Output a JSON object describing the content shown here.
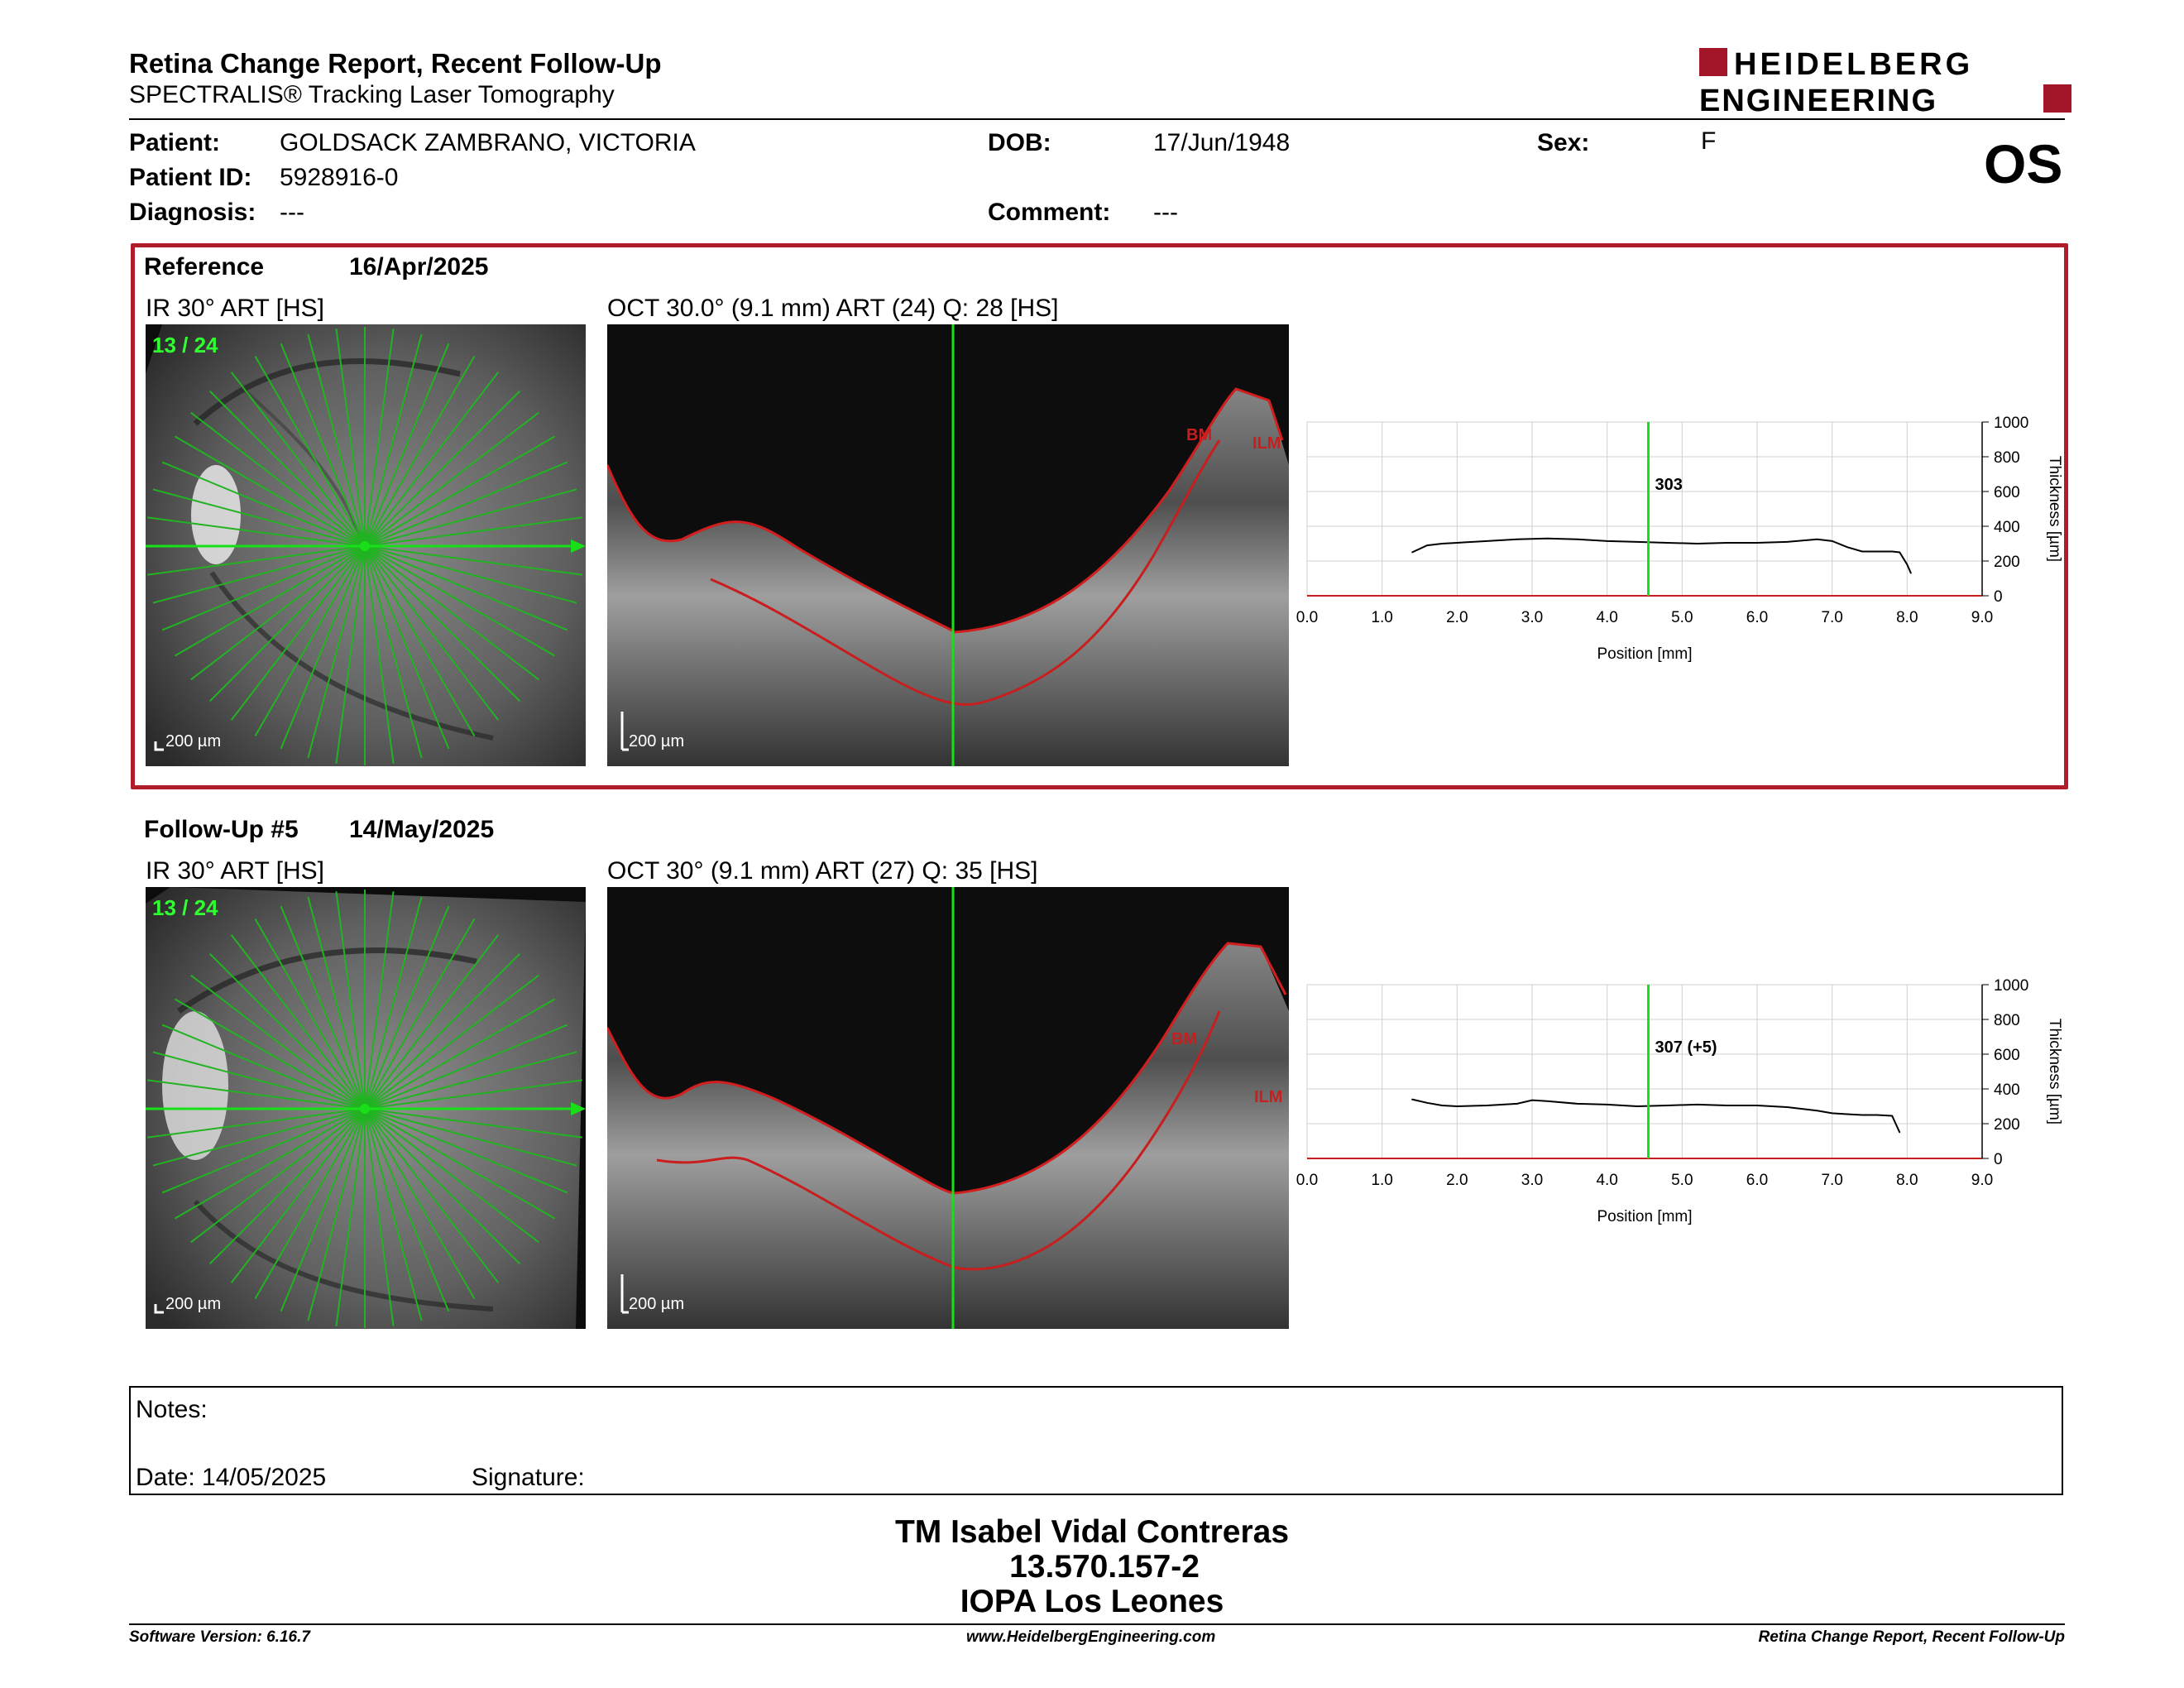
{
  "header": {
    "title": "Retina Change Report, Recent Follow-Up",
    "subtitle": "SPECTRALIS® Tracking Laser Tomography",
    "logo_line1": "HEIDELBERG",
    "logo_line2": "ENGINEERING",
    "eye": "OS"
  },
  "patient": {
    "patient_label": "Patient:",
    "patient_name": "GOLDSACK ZAMBRANO, VICTORIA",
    "id_label": "Patient ID:",
    "id_value": "5928916-0",
    "diagnosis_label": "Diagnosis:",
    "diagnosis_value": "---",
    "dob_label": "DOB:",
    "dob_value": "17/Jun/1948",
    "comment_label": "Comment:",
    "comment_value": "---",
    "sex_label": "Sex:",
    "sex_value": "F"
  },
  "reference": {
    "label": "Reference",
    "date": "16/Apr/2025",
    "ir_caption": "IR 30° ART [HS]",
    "oct_caption": "OCT 30.0° (9.1 mm) ART (24) Q: 28 [HS]",
    "scan_index": "13 / 24",
    "scale_ir": "200 µm",
    "scale_oct": "200 µm",
    "layer_bm": "BM",
    "layer_ilm": "ILM",
    "thickness_value": "303"
  },
  "followup": {
    "label": "Follow-Up #5",
    "date": "14/May/2025",
    "ir_caption": "IR 30° ART [HS]",
    "oct_caption": "OCT 30° (9.1 mm) ART (27) Q: 35 [HS]",
    "scan_index": "13 / 24",
    "scale_ir": "200 µm",
    "scale_oct": "200 µm",
    "layer_bm": "BM",
    "layer_ilm": "ILM",
    "thickness_value": "307 (+5)"
  },
  "chart_data": [
    {
      "type": "line",
      "title": "",
      "xlabel": "Position [mm]",
      "ylabel": "Thickness [µm]",
      "xlim": [
        0,
        9
      ],
      "ylim": [
        0,
        1000
      ],
      "x_ticks": [
        "0.0",
        "1.0",
        "2.0",
        "3.0",
        "4.0",
        "5.0",
        "6.0",
        "7.0",
        "8.0",
        "9.0"
      ],
      "y_ticks": [
        "0",
        "200",
        "400",
        "600",
        "800",
        "1000"
      ],
      "cursor_x": 4.55,
      "cursor_label": "303",
      "series": [
        {
          "x": [
            1.4,
            1.6,
            1.8,
            2.0,
            2.4,
            2.8,
            3.2,
            3.6,
            4.0,
            4.4,
            4.8,
            5.2,
            5.6,
            6.0,
            6.4,
            6.8,
            7.0,
            7.2,
            7.4,
            7.6,
            7.8,
            7.9,
            8.0,
            8.05
          ],
          "values": [
            250,
            290,
            300,
            305,
            315,
            325,
            330,
            325,
            315,
            310,
            305,
            300,
            305,
            305,
            310,
            325,
            315,
            280,
            255,
            255,
            255,
            250,
            180,
            130
          ]
        }
      ]
    },
    {
      "type": "line",
      "title": "",
      "xlabel": "Position [mm]",
      "ylabel": "Thickness [µm]",
      "xlim": [
        0,
        9
      ],
      "ylim": [
        0,
        1000
      ],
      "x_ticks": [
        "0.0",
        "1.0",
        "2.0",
        "3.0",
        "4.0",
        "5.0",
        "6.0",
        "7.0",
        "8.0",
        "9.0"
      ],
      "y_ticks": [
        "0",
        "200",
        "400",
        "600",
        "800",
        "1000"
      ],
      "cursor_x": 4.55,
      "cursor_label": "307 (+5)",
      "series": [
        {
          "x": [
            1.4,
            1.6,
            1.8,
            2.0,
            2.4,
            2.8,
            3.0,
            3.2,
            3.6,
            4.0,
            4.4,
            4.8,
            5.2,
            5.6,
            6.0,
            6.4,
            6.8,
            7.0,
            7.2,
            7.4,
            7.6,
            7.8,
            7.9
          ],
          "values": [
            340,
            320,
            305,
            300,
            305,
            315,
            335,
            330,
            315,
            310,
            300,
            305,
            310,
            305,
            305,
            295,
            275,
            260,
            255,
            250,
            250,
            245,
            150
          ]
        }
      ]
    }
  ],
  "notes": {
    "notes_label": "Notes:",
    "date_label": "Date: 14/05/2025",
    "signature_label": "Signature:"
  },
  "signature_block": {
    "name": "TM Isabel Vidal Contreras",
    "id": "13.570.157-2",
    "institution": "IOPA Los Leones"
  },
  "footer": {
    "software": "Software Version: 6.16.7",
    "website": "www.HeidelbergEngineering.com",
    "report_name": "Retina Change Report, Recent Follow-Up"
  }
}
